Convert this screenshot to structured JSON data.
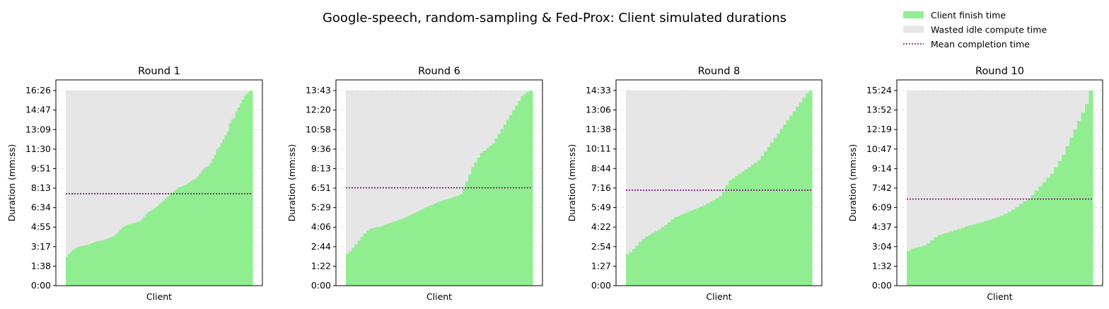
{
  "figure": {
    "title": "Google-speech, random-sampling & Fed-Prox: Client simulated durations"
  },
  "legend": {
    "placement": "top-right",
    "items": [
      {
        "label": "Client finish time",
        "color": "#90ee90",
        "kind": "patch"
      },
      {
        "label": "Wasted idle compute time",
        "color": "#e6e6e6",
        "kind": "patch"
      },
      {
        "label": "Mean completion time",
        "color": "#800080",
        "kind": "dotted-line"
      }
    ]
  },
  "colors": {
    "finish": "#90ee90",
    "idle": "#e6e6e6",
    "mean": "#800080",
    "grid": "#cccccc"
  },
  "chart_data": [
    {
      "type": "bar",
      "title": "Round 1",
      "xlabel": "Client",
      "ylabel": "Duration (mm:ss)",
      "yticks": [
        "0:00",
        "1:38",
        "3:17",
        "4:55",
        "6:34",
        "8:13",
        "9:51",
        "11:30",
        "13:09",
        "14:47",
        "16:26"
      ],
      "tick_step_seconds": 98.6,
      "ylim_seconds": [
        0,
        1040
      ],
      "max_seconds": 986,
      "mean_seconds": 465,
      "grid": true,
      "sorted_client_durations_seconds": [
        145,
        160,
        172,
        180,
        188,
        194,
        198,
        200,
        202,
        205,
        208,
        212,
        216,
        220,
        224,
        226,
        228,
        230,
        234,
        238,
        242,
        246,
        252,
        260,
        270,
        284,
        294,
        300,
        306,
        310,
        312,
        316,
        318,
        322,
        326,
        336,
        348,
        362,
        372,
        378,
        384,
        392,
        400,
        410,
        420,
        430,
        440,
        450,
        460,
        470,
        478,
        488,
        496,
        500,
        504,
        508,
        512,
        520,
        528,
        535,
        540,
        552,
        566,
        580,
        592,
        600,
        606,
        620,
        640,
        660,
        690,
        700,
        720,
        740,
        760,
        780,
        820,
        840,
        850,
        880,
        900,
        920,
        940,
        960,
        970,
        980,
        986
      ]
    },
    {
      "type": "bar",
      "title": "Round 6",
      "xlabel": "Client",
      "ylabel": "Duration (mm:ss)",
      "yticks": [
        "0:00",
        "1:22",
        "2:44",
        "4:06",
        "5:29",
        "6:51",
        "8:13",
        "9:36",
        "10:58",
        "12:20",
        "13:43"
      ],
      "tick_step_seconds": 82.3,
      "ylim_seconds": [
        0,
        868
      ],
      "max_seconds": 823,
      "mean_seconds": 413,
      "grid": true,
      "sorted_client_durations_seconds": [
        135,
        145,
        160,
        175,
        190,
        205,
        220,
        232,
        240,
        244,
        246,
        248,
        252,
        258,
        262,
        266,
        270,
        274,
        278,
        282,
        288,
        294,
        300,
        306,
        312,
        318,
        324,
        330,
        336,
        340,
        346,
        352,
        356,
        360,
        364,
        368,
        372,
        376,
        380,
        386,
        410,
        440,
        470,
        500,
        520,
        540,
        560,
        570,
        580,
        590,
        600,
        620,
        640,
        660,
        680,
        700,
        720,
        740,
        760,
        780,
        800,
        810,
        818,
        823
      ]
    },
    {
      "type": "bar",
      "title": "Round 8",
      "xlabel": "Client",
      "ylabel": "Duration (mm:ss)",
      "yticks": [
        "0:00",
        "1:27",
        "2:54",
        "4:22",
        "5:49",
        "7:16",
        "8:44",
        "10:11",
        "11:38",
        "13:06",
        "14:33"
      ],
      "tick_step_seconds": 87.3,
      "ylim_seconds": [
        0,
        920
      ],
      "max_seconds": 873,
      "mean_seconds": 427,
      "grid": true,
      "sorted_client_durations_seconds": [
        140,
        150,
        165,
        180,
        195,
        210,
        220,
        228,
        236,
        244,
        252,
        262,
        272,
        284,
        296,
        306,
        312,
        318,
        324,
        330,
        336,
        342,
        348,
        354,
        360,
        368,
        376,
        384,
        392,
        400,
        420,
        450,
        470,
        480,
        490,
        500,
        510,
        520,
        530,
        540,
        550,
        560,
        580,
        600,
        620,
        640,
        660,
        680,
        700,
        720,
        740,
        760,
        780,
        800,
        820,
        840,
        860,
        873
      ]
    },
    {
      "type": "bar",
      "title": "Round 10",
      "xlabel": "Client",
      "ylabel": "Duration (mm:ss)",
      "yticks": [
        "0:00",
        "1:32",
        "3:04",
        "4:37",
        "6:09",
        "7:42",
        "9:14",
        "10:47",
        "12:19",
        "13:52",
        "15:24"
      ],
      "tick_step_seconds": 92.4,
      "ylim_seconds": [
        0,
        974
      ],
      "max_seconds": 924,
      "mean_seconds": 410,
      "grid": true,
      "sorted_client_durations_seconds": [
        165,
        175,
        180,
        184,
        190,
        200,
        215,
        230,
        240,
        246,
        250,
        256,
        262,
        268,
        274,
        280,
        286,
        290,
        296,
        300,
        306,
        312,
        318,
        324,
        332,
        340,
        350,
        360,
        372,
        386,
        398,
        410,
        430,
        450,
        470,
        490,
        510,
        530,
        560,
        590,
        620,
        660,
        700,
        740,
        780,
        820,
        860,
        924
      ]
    }
  ]
}
